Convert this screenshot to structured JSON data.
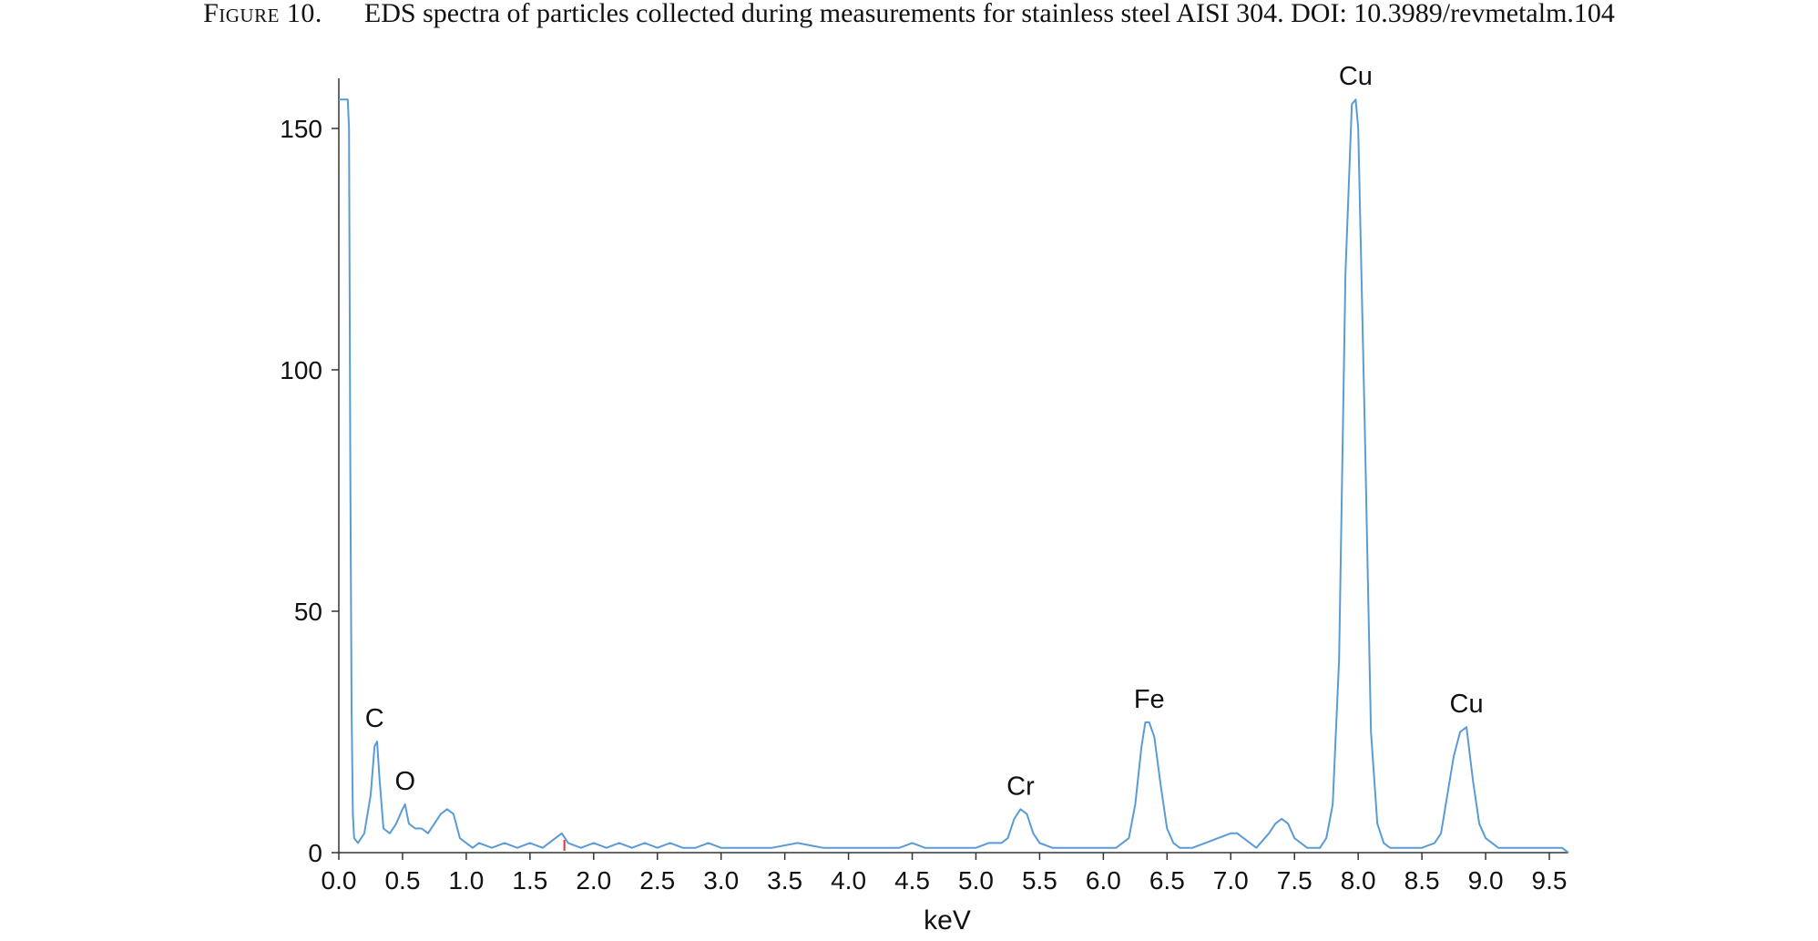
{
  "caption": {
    "label": "Figure 10.",
    "text": "EDS spectra of particles collected during measurements for stainless steel AISI 304. DOI: 10.3989/revmetalm.104"
  },
  "chart_data": {
    "type": "line",
    "title": "",
    "xlabel": "keV",
    "ylabel": "",
    "xlim": [
      0,
      9.65
    ],
    "ylim": [
      0,
      160
    ],
    "xticks": [
      0.0,
      0.5,
      1.0,
      1.5,
      2.0,
      2.5,
      3.0,
      3.5,
      4.0,
      4.5,
      5.0,
      5.5,
      6.0,
      6.5,
      7.0,
      7.5,
      8.0,
      8.5,
      9.0,
      9.5
    ],
    "xtick_labels": [
      "0.0",
      "0.5",
      "1.0",
      "1.5",
      "2.0",
      "2.5",
      "3.0",
      "3.5",
      "4.0",
      "4.5",
      "5.0",
      "5.5",
      "6.0",
      "6.5",
      "7.0",
      "7.5",
      "8.0",
      "8.5",
      "9.0",
      "9.5"
    ],
    "yticks": [
      0,
      50,
      100,
      150
    ],
    "ytick_labels": [
      "0",
      "50",
      "100",
      "150"
    ],
    "grid": false,
    "legend": "none",
    "line_color": "#5b9bd5",
    "marker": {
      "x": 1.77,
      "color": "#e03030"
    },
    "series": [
      {
        "x": [
          0.0,
          0.07,
          0.08,
          0.09,
          0.1,
          0.11,
          0.12,
          0.15,
          0.2,
          0.25,
          0.28,
          0.3,
          0.32,
          0.35,
          0.4,
          0.45,
          0.5,
          0.52,
          0.55,
          0.6,
          0.65,
          0.7,
          0.75,
          0.8,
          0.85,
          0.9,
          0.95,
          1.0,
          1.05,
          1.1,
          1.2,
          1.3,
          1.4,
          1.5,
          1.6,
          1.7,
          1.75,
          1.8,
          1.9,
          2.0,
          2.1,
          2.2,
          2.3,
          2.4,
          2.5,
          2.6,
          2.7,
          2.8,
          2.9,
          3.0,
          3.2,
          3.4,
          3.6,
          3.8,
          4.0,
          4.2,
          4.4,
          4.5,
          4.6,
          4.8,
          5.0,
          5.1,
          5.2,
          5.25,
          5.3,
          5.35,
          5.4,
          5.45,
          5.5,
          5.6,
          5.8,
          6.0,
          6.1,
          6.2,
          6.25,
          6.3,
          6.33,
          6.36,
          6.4,
          6.45,
          6.5,
          6.55,
          6.6,
          6.7,
          6.8,
          6.9,
          7.0,
          7.05,
          7.1,
          7.2,
          7.3,
          7.35,
          7.4,
          7.45,
          7.5,
          7.6,
          7.7,
          7.75,
          7.8,
          7.85,
          7.9,
          7.95,
          7.98,
          8.0,
          8.05,
          8.1,
          8.15,
          8.2,
          8.25,
          8.3,
          8.4,
          8.5,
          8.6,
          8.65,
          8.7,
          8.75,
          8.8,
          8.85,
          8.9,
          8.95,
          9.0,
          9.05,
          9.1,
          9.2,
          9.3,
          9.4,
          9.5,
          9.6,
          9.65
        ],
        "y": [
          156,
          156,
          150,
          80,
          30,
          8,
          3,
          2,
          4,
          12,
          22,
          23,
          15,
          5,
          4,
          6,
          9,
          10,
          6,
          5,
          5,
          4,
          6,
          8,
          9,
          8,
          3,
          2,
          1,
          2,
          1,
          2,
          1,
          2,
          1,
          3,
          4,
          2,
          1,
          2,
          1,
          2,
          1,
          2,
          1,
          2,
          1,
          1,
          2,
          1,
          1,
          1,
          2,
          1,
          1,
          1,
          1,
          2,
          1,
          1,
          1,
          2,
          2,
          3,
          7,
          9,
          8,
          4,
          2,
          1,
          1,
          1,
          1,
          3,
          10,
          22,
          27,
          27,
          24,
          14,
          5,
          2,
          1,
          1,
          2,
          3,
          4,
          4,
          3,
          1,
          4,
          6,
          7,
          6,
          3,
          1,
          1,
          3,
          10,
          40,
          120,
          155,
          156,
          150,
          90,
          25,
          6,
          2,
          1,
          1,
          1,
          1,
          2,
          4,
          12,
          20,
          25,
          26,
          15,
          6,
          3,
          2,
          1,
          1,
          1,
          1,
          1,
          1,
          0
        ]
      }
    ],
    "annotations": [
      {
        "text": "C",
        "x": 0.28,
        "y": 23
      },
      {
        "text": "O",
        "x": 0.52,
        "y": 10
      },
      {
        "text": "Cr",
        "x": 5.35,
        "y": 9
      },
      {
        "text": "Fe",
        "x": 6.36,
        "y": 27
      },
      {
        "text": "Cu",
        "x": 7.98,
        "y": 156
      },
      {
        "text": "Cu",
        "x": 8.85,
        "y": 26
      }
    ]
  }
}
